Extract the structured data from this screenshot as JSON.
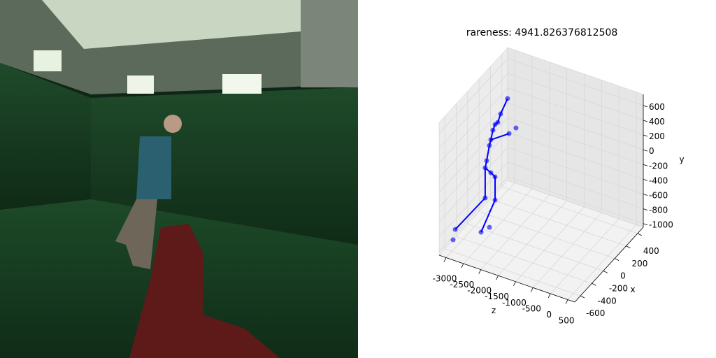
{
  "chart_data": {
    "type": "scatter3d",
    "title": "rareness: 4941.826376812508",
    "xlabel": "x",
    "ylabel": "y",
    "zlabel": "z",
    "color": "#0000ff",
    "xlim": [
      -700,
      500
    ],
    "ylim": [
      -1050,
      750
    ],
    "zlim": [
      -3200,
      700
    ],
    "xticks": [
      -600,
      -400,
      -200,
      0,
      200,
      400
    ],
    "yticks": [
      -1000,
      -800,
      -600,
      -400,
      -200,
      0,
      200,
      400,
      600
    ],
    "zticks": [
      -3000,
      -2500,
      -2000,
      -1500,
      -1000,
      -500,
      0,
      500
    ],
    "grid": true,
    "points": {
      "x": [
        0,
        0,
        0,
        0,
        0,
        0,
        0,
        0,
        0,
        0,
        0,
        0,
        0,
        0,
        0,
        -500,
        -500,
        -500,
        -500
      ],
      "y": [
        615,
        374,
        246,
        205,
        118,
        255,
        147,
        -22,
        -107,
        -326,
        -429,
        -469,
        -505,
        -836,
        -818,
        -659,
        -764,
        -848,
        -999
      ],
      "z": [
        -2381,
        -2580,
        -2662,
        -2740,
        -2802,
        -2139,
        -2338,
        -2861,
        -2904,
        -2982,
        -3025,
        -2861,
        -2740,
        -3025,
        -2740,
        -2081,
        -2322,
        -3065,
        -3126
      ]
    },
    "lines": [
      {
        "x": [
          0,
          0,
          0,
          0,
          0,
          0,
          0,
          0,
          0,
          0,
          -500
        ],
        "y": [
          615,
          374,
          246,
          205,
          118,
          -22,
          -107,
          -326,
          -429,
          -836,
          -848
        ],
        "z": [
          -2381,
          -2580,
          -2662,
          -2740,
          -2802,
          -2861,
          -2904,
          -2982,
          -3025,
          -3025,
          -3065
        ]
      },
      {
        "x": [
          0,
          0,
          0,
          0,
          -500
        ],
        "y": [
          -429,
          -469,
          -505,
          -818,
          -764
        ],
        "z": [
          -3025,
          -2861,
          -2740,
          -2740,
          -2322
        ]
      },
      {
        "x": [
          0,
          0
        ],
        "y": [
          -22,
          147
        ],
        "z": [
          -2861,
          -2338
        ]
      }
    ]
  }
}
